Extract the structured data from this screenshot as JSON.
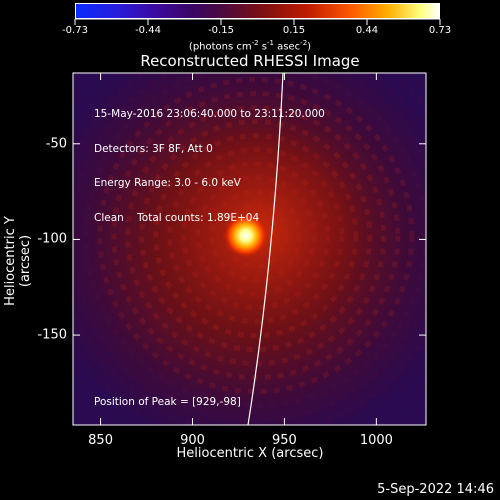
{
  "colorbar": {
    "ticks": [
      "-0.73",
      "-0.44",
      "-0.15",
      "0.15",
      "0.44",
      "0.73"
    ],
    "units_prefix": "(photons cm",
    "units_exp1": "-2",
    "units_mid": " s",
    "units_exp2": "-1",
    "units_mid2": " asec",
    "units_exp3": "-2",
    "units_suffix": ")"
  },
  "chart_data": {
    "type": "heatmap",
    "title": "Reconstructed RHESSI Image",
    "xlabel": "Heliocentric X (arcsec)",
    "ylabel": "Heliocentric Y (arcsec)",
    "xlim": [
      835,
      1027
    ],
    "ylim": [
      -197,
      -13
    ],
    "xticks": [
      "850",
      "900",
      "950",
      "1000"
    ],
    "yticks": [
      "-50",
      "-100",
      "-150"
    ],
    "clim": [
      -0.73,
      0.73
    ],
    "colormap": "blue-purple-red-yellow-white",
    "peak": {
      "x": 929,
      "y": -98
    },
    "limb_curve": true
  },
  "info": {
    "line1": "15-May-2016 23:06:40.000 to 23:11:20.000",
    "line2": "Detectors: 3F 8F, Att 0",
    "line3": "Energy Range: 3.0 - 6.0 keV",
    "line4": "Clean    Total counts: 1.89E+04",
    "peak": "Position of Peak = [929,-98]"
  },
  "footer": {
    "date": "5-Sep-2022 14:46"
  }
}
